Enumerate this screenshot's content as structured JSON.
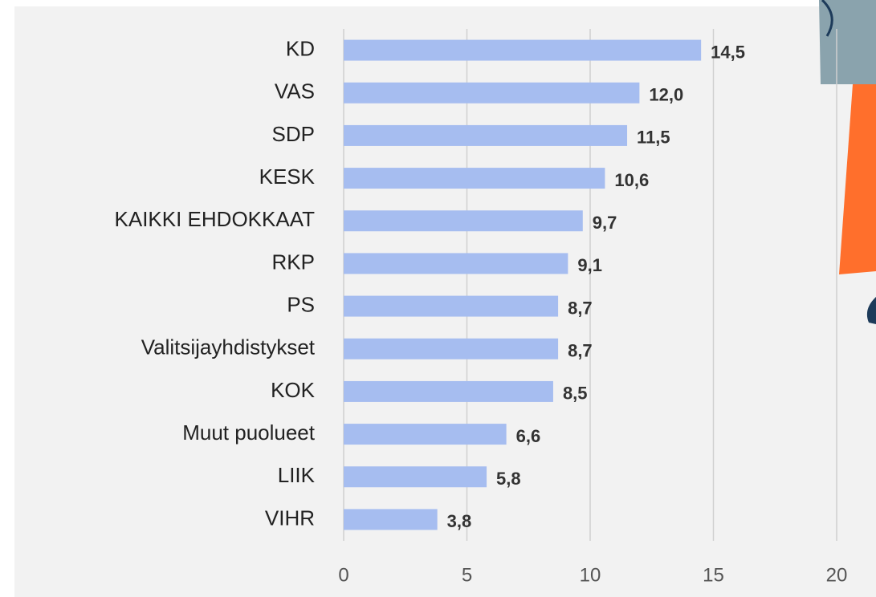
{
  "chart_data": {
    "type": "barh",
    "categories": [
      "KD",
      "VAS",
      "SDP",
      "KESK",
      "KAIKKI EHDOKKAAT",
      "RKP",
      "PS",
      "Valitsijayhdistykset",
      "KOK",
      "Muut puolueet",
      "LIIK",
      "VIHR"
    ],
    "values": [
      14.5,
      12.0,
      11.5,
      10.6,
      9.7,
      9.1,
      8.7,
      8.7,
      8.5,
      6.6,
      5.8,
      3.8
    ],
    "value_labels": [
      "14,5",
      "12,0",
      "11,5",
      "10,6",
      "9,7",
      "9,1",
      "8,7",
      "8,7",
      "8,5",
      "6,6",
      "5,8",
      "3,8"
    ],
    "color": "#a6bdf0",
    "xlim": [
      0,
      20
    ],
    "xticks": [
      0,
      5,
      10,
      15,
      20
    ],
    "grid": true
  }
}
